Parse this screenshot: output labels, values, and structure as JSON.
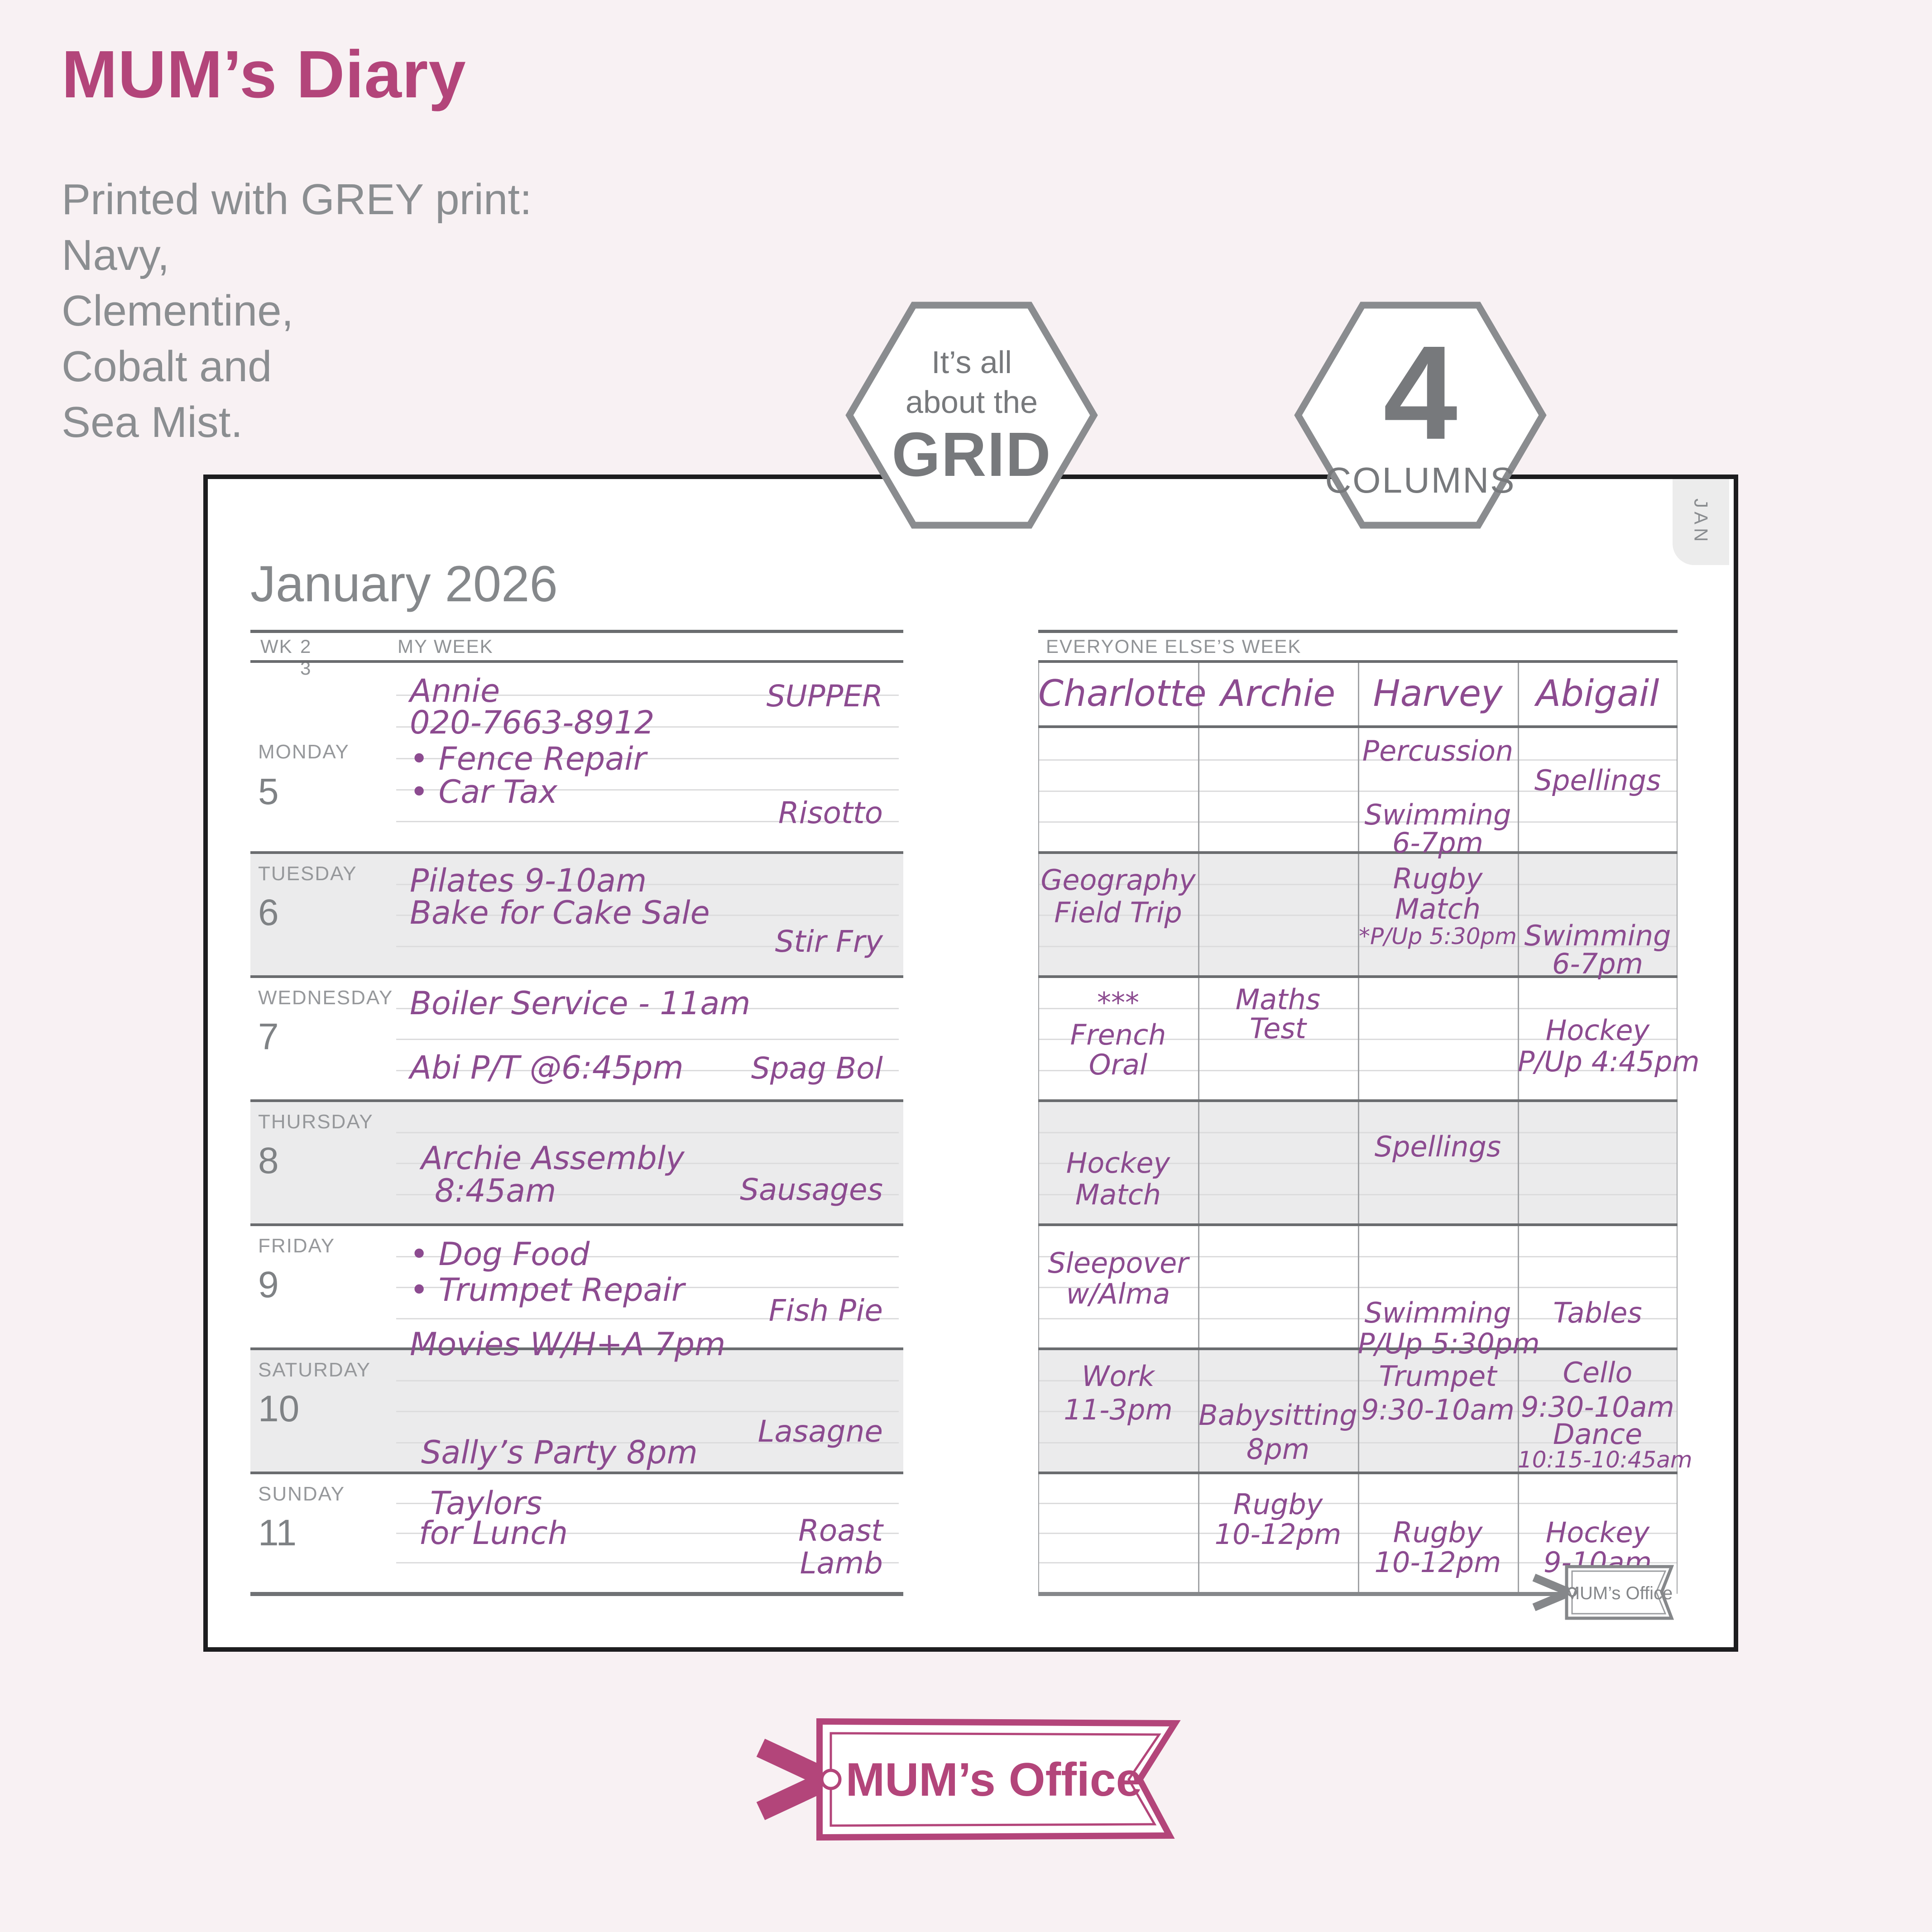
{
  "header": {
    "title": "MUM’s Diary",
    "subtitle_lines": [
      "Printed with GREY print:",
      "Navy,",
      "Clementine,",
      "Cobalt and",
      "Sea Mist."
    ]
  },
  "badges": {
    "grid": {
      "line1": "It’s all",
      "line2": "about the",
      "line3": "GRID"
    },
    "columns": {
      "number": "4",
      "label": "COLUMNS"
    }
  },
  "diary": {
    "month_title": "January 2026",
    "tab_label": "JAN",
    "left_header": {
      "wk_label": "WK",
      "week_current": "2",
      "week_next": "3",
      "title": "MY WEEK"
    },
    "right_header": {
      "title": "EVERYONE ELSE’S WEEK",
      "columns": [
        "Charlotte",
        "Archie",
        "Harvey",
        "Abigail"
      ]
    },
    "corner_tag": "MUM’s Office",
    "days": [
      {
        "label": "MONDAY",
        "number": "5",
        "shaded": false,
        "rows": 6,
        "my_week": [
          {
            "text": "Annie",
            "slot": "main",
            "row": 0.3
          },
          {
            "text": "020-7663-8912",
            "slot": "main",
            "row": 1.3
          },
          {
            "text": "• Fence Repair",
            "slot": "main",
            "row": 2.45
          },
          {
            "text": "• Car Tax",
            "slot": "main",
            "row": 3.5
          },
          {
            "text": "SUPPER",
            "slot": "meal",
            "row": 0.5
          },
          {
            "text": "Risotto",
            "slot": "meal",
            "row": 4.2
          }
        ],
        "family": [
          {
            "col": 2,
            "row": 0.2,
            "text": "Percussion"
          },
          {
            "col": 3,
            "row": 1.15,
            "text": "Spellings"
          },
          {
            "col": 2,
            "row": 2.25,
            "text": "Swimming"
          },
          {
            "col": 2,
            "row": 3.15,
            "text": "6-7pm"
          }
        ]
      },
      {
        "label": "TUESDAY",
        "number": "6",
        "shaded": true,
        "rows": 4,
        "my_week": [
          {
            "text": "Pilates 9-10am",
            "slot": "main",
            "row": 0.3
          },
          {
            "text": "Bake for Cake Sale",
            "slot": "main",
            "row": 1.35
          },
          {
            "text": "Stir Fry",
            "slot": "meal",
            "row": 2.3
          }
        ],
        "family": [
          {
            "col": 0,
            "row": 0.35,
            "text": "Geography"
          },
          {
            "col": 0,
            "row": 1.4,
            "text": "Field Trip"
          },
          {
            "col": 2,
            "row": 0.3,
            "text": "Rugby"
          },
          {
            "col": 2,
            "row": 1.28,
            "text": "Match"
          },
          {
            "col": 2,
            "row": 2.28,
            "text": "*P/Up 5:30pm"
          },
          {
            "col": 3,
            "row": 2.15,
            "text": "Swimming"
          },
          {
            "col": 3,
            "row": 3.05,
            "text": "6-7pm"
          }
        ]
      },
      {
        "label": "WEDNESDAY",
        "number": "7",
        "shaded": false,
        "rows": 4,
        "my_week": [
          {
            "text": "Boiler Service - 11am",
            "slot": "main",
            "row": 0.26
          },
          {
            "text": "Abi P/T @6:45pm",
            "slot": "main",
            "row": 2.33
          },
          {
            "text": "Spag Bol",
            "slot": "meal",
            "row": 2.4
          }
        ],
        "family": [
          {
            "col": 0,
            "row": 0.3,
            "text": "***"
          },
          {
            "col": 0,
            "row": 1.34,
            "text": "French"
          },
          {
            "col": 0,
            "row": 2.3,
            "text": "Oral"
          },
          {
            "col": 1,
            "row": 0.2,
            "text": "Maths"
          },
          {
            "col": 1,
            "row": 1.14,
            "text": "Test"
          },
          {
            "col": 3,
            "row": 1.2,
            "text": "Hockey"
          },
          {
            "col": 3,
            "row": 2.2,
            "text": "P/Up 4:45pm"
          }
        ]
      },
      {
        "label": "THURSDAY",
        "number": "8",
        "shaded": true,
        "rows": 4,
        "my_week": [
          {
            "text": "Archie Assembly",
            "slot": "main",
            "row": 1.25,
            "indent": 25
          },
          {
            "text": "8:45am",
            "slot": "main",
            "row": 2.3,
            "indent": 55
          },
          {
            "text": "Sausages",
            "slot": "meal",
            "row": 2.3
          }
        ],
        "family": [
          {
            "col": 0,
            "row": 1.47,
            "text": "Hockey"
          },
          {
            "col": 0,
            "row": 2.5,
            "text": "Match"
          },
          {
            "col": 2,
            "row": 0.95,
            "text": "Spellings"
          }
        ]
      },
      {
        "label": "FRIDAY",
        "number": "9",
        "shaded": false,
        "rows": 4,
        "my_week": [
          {
            "text": "• Dog Food",
            "slot": "main",
            "row": 0.35
          },
          {
            "text": "• Trumpet Repair",
            "slot": "main",
            "row": 1.5
          },
          {
            "text": "Fish Pie",
            "slot": "meal",
            "row": 2.2
          },
          {
            "text": "Movies W/H+A 7pm",
            "slot": "main",
            "row": 3.25
          }
        ],
        "family": [
          {
            "col": 0,
            "row": 0.7,
            "text": "Sleepover"
          },
          {
            "col": 0,
            "row": 1.7,
            "text": "w/Alma"
          },
          {
            "col": 2,
            "row": 2.3,
            "text": "Swimming"
          },
          {
            "col": 2,
            "row": 3.3,
            "text": "P/Up 5:30pm"
          },
          {
            "col": 3,
            "row": 2.3,
            "text": "Tables"
          }
        ]
      },
      {
        "label": "SATURDAY",
        "number": "10",
        "shaded": true,
        "rows": 4,
        "my_week": [
          {
            "text": "Sally’s Party 8pm",
            "slot": "main",
            "row": 2.75,
            "indent": 25
          },
          {
            "text": "Lasagne",
            "slot": "meal",
            "row": 2.1
          }
        ],
        "family": [
          {
            "col": 0,
            "row": 0.35,
            "text": "Work"
          },
          {
            "col": 0,
            "row": 1.43,
            "text": "11-3pm"
          },
          {
            "col": 1,
            "row": 1.6,
            "text": "Babysitting"
          },
          {
            "col": 1,
            "row": 2.7,
            "text": "8pm"
          },
          {
            "col": 2,
            "row": 0.35,
            "text": "Trumpet"
          },
          {
            "col": 2,
            "row": 1.43,
            "text": "9:30-10am"
          },
          {
            "col": 3,
            "row": 0.23,
            "text": "Cello"
          },
          {
            "col": 3,
            "row": 1.34,
            "text": "9:30-10am"
          },
          {
            "col": 3,
            "row": 2.22,
            "text": "Dance"
          },
          {
            "col": 3,
            "row": 3.15,
            "text": "10:15-10:45am"
          }
        ]
      },
      {
        "label": "SUNDAY",
        "number": "11",
        "shaded": false,
        "rows": 4,
        "my_week": [
          {
            "text": "Taylors",
            "slot": "main",
            "row": 0.4,
            "indent": 45
          },
          {
            "text": "for Lunch",
            "slot": "main",
            "row": 1.4,
            "indent": 20
          },
          {
            "text": "Roast",
            "slot": "meal",
            "row": 1.35
          },
          {
            "text": "Lamb",
            "slot": "meal",
            "row": 2.45
          }
        ],
        "family": [
          {
            "col": 1,
            "row": 0.5,
            "text": "Rugby"
          },
          {
            "col": 1,
            "row": 1.5,
            "text": "10-12pm"
          },
          {
            "col": 2,
            "row": 1.44,
            "text": "Rugby"
          },
          {
            "col": 2,
            "row": 2.45,
            "text": "10-12pm"
          },
          {
            "col": 3,
            "row": 1.44,
            "text": "Hockey"
          },
          {
            "col": 3,
            "row": 2.45,
            "text": "9-10am"
          }
        ]
      }
    ]
  },
  "footer": {
    "logo_text": "MUM’s Office"
  },
  "colors": {
    "accent": "#b3457a",
    "handwriting": "#8c4b90",
    "grey_print": "#8b8e91"
  }
}
